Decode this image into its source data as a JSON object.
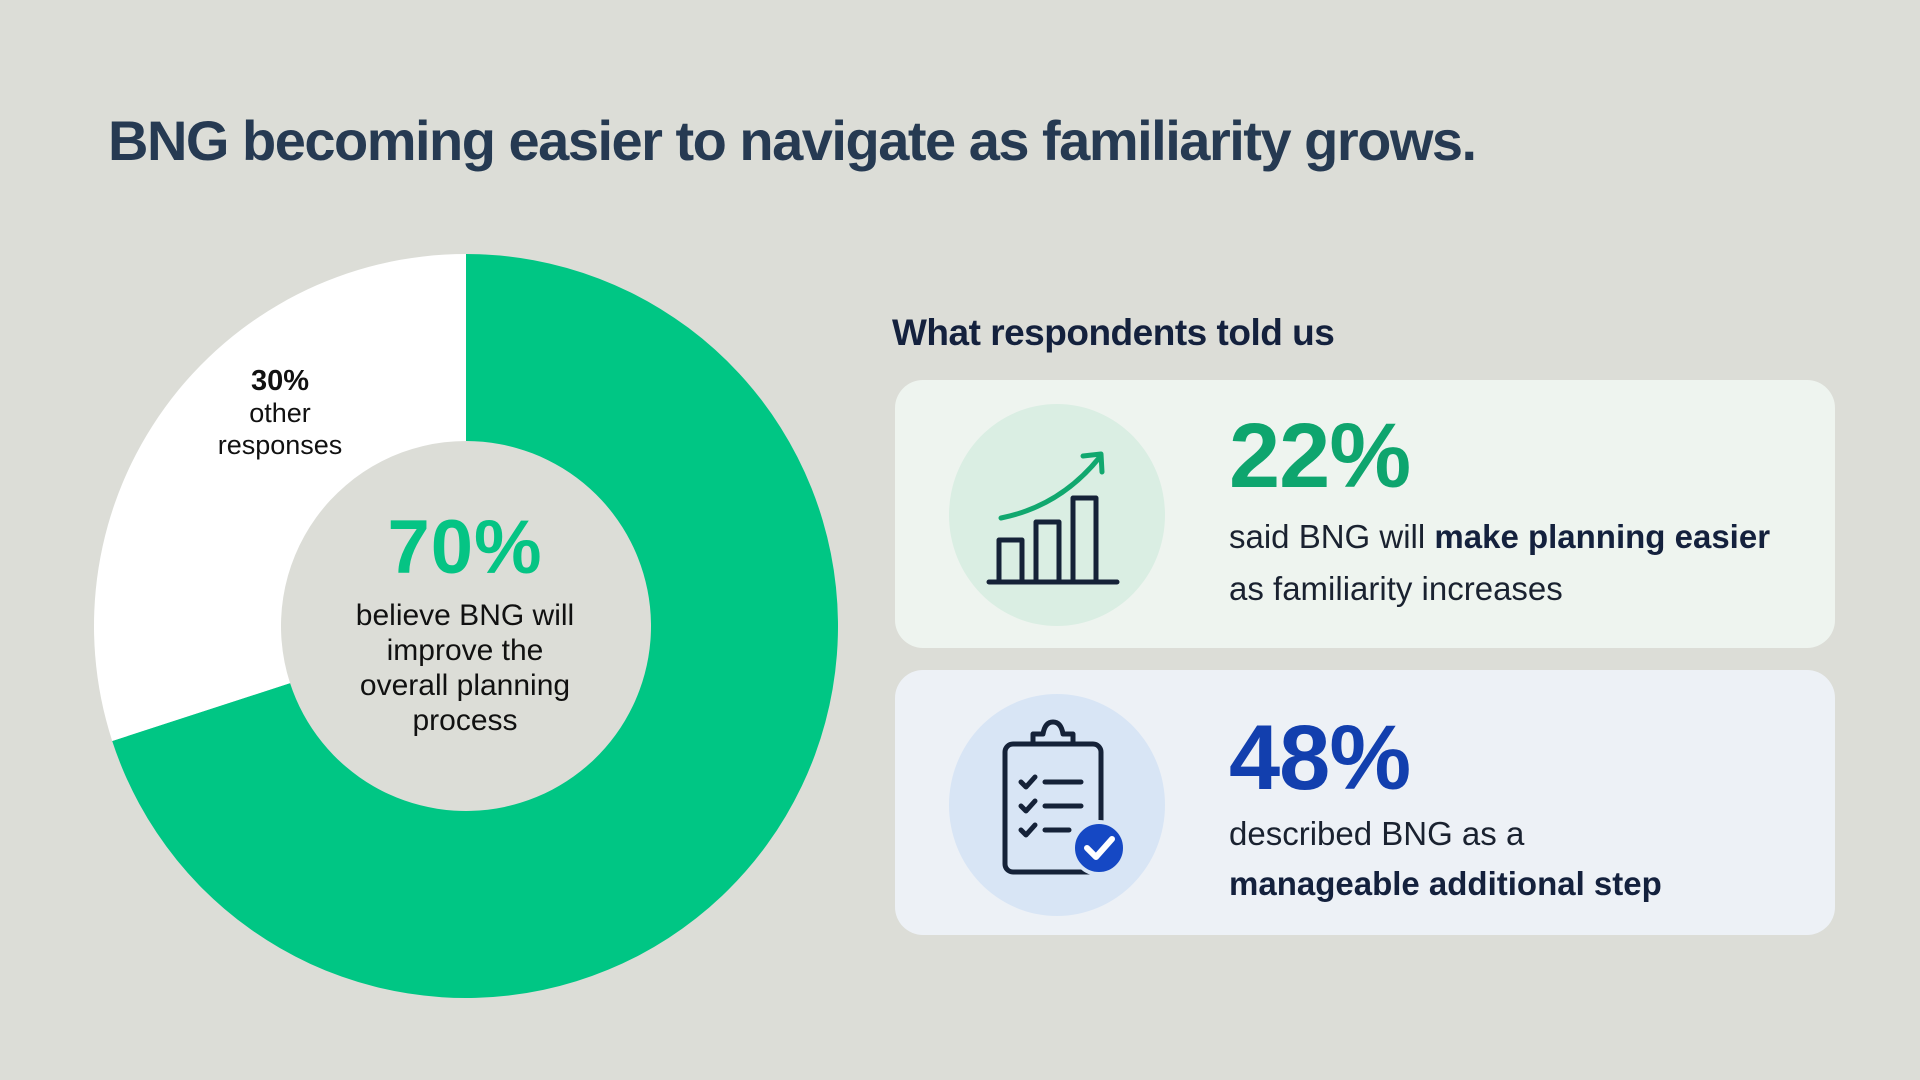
{
  "title": "BNG becoming easier to navigate as familiarity grows.",
  "chart_data": {
    "type": "pie",
    "title": "",
    "slices": [
      {
        "label": "believe BNG will improve the overall planning process",
        "value": 70,
        "color": "#00C684"
      },
      {
        "label": "other responses",
        "value": 30,
        "color": "#FFFFFF"
      }
    ]
  },
  "donut_center": {
    "pct": "70%",
    "desc_lines": [
      "believe BNG will",
      "improve the",
      "overall planning",
      "process"
    ]
  },
  "other_label": {
    "pct": "30%",
    "desc_lines": [
      "other",
      "responses"
    ]
  },
  "section_heading": "What respondents told us",
  "stats": [
    {
      "pct": "22%",
      "line1_pre": "said BNG will ",
      "line1_bold": "make planning easier",
      "line2": "as familiarity increases",
      "icon": "bar-chart-growth-icon",
      "color": "#0EA56E"
    },
    {
      "pct": "48%",
      "line1": "described BNG as a",
      "line2_bold": "manageable additional step",
      "icon": "clipboard-checklist-icon",
      "color": "#123FAE"
    }
  ]
}
